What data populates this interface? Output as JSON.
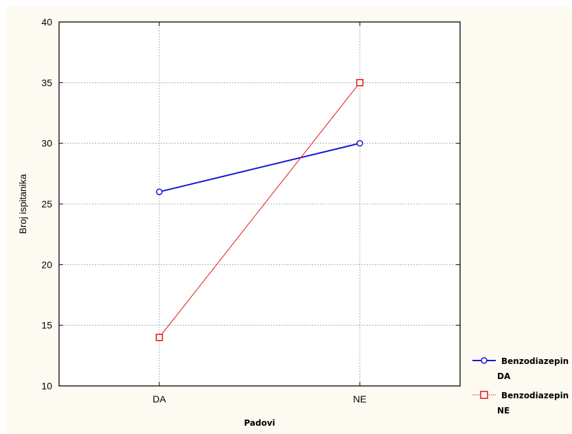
{
  "chart_data": {
    "type": "line",
    "title": "",
    "xlabel": "Padovi",
    "ylabel": "Broj ispitanika",
    "categories": [
      "DA",
      "NE"
    ],
    "ylim": [
      10,
      40
    ],
    "yticks": [
      "10",
      "15",
      "20",
      "25",
      "30",
      "35",
      "40"
    ],
    "grid": true,
    "legend_position": "bottom-right",
    "series": [
      {
        "name_line1": "Benzodiazepin",
        "name_line2": "DA",
        "values": [
          26,
          30
        ],
        "color": "#1414d2",
        "marker": "circle"
      },
      {
        "name_line1": "Benzodiazepin",
        "name_line2": "NE",
        "values": [
          14,
          35
        ],
        "color": "#e01010",
        "marker": "square"
      }
    ]
  }
}
